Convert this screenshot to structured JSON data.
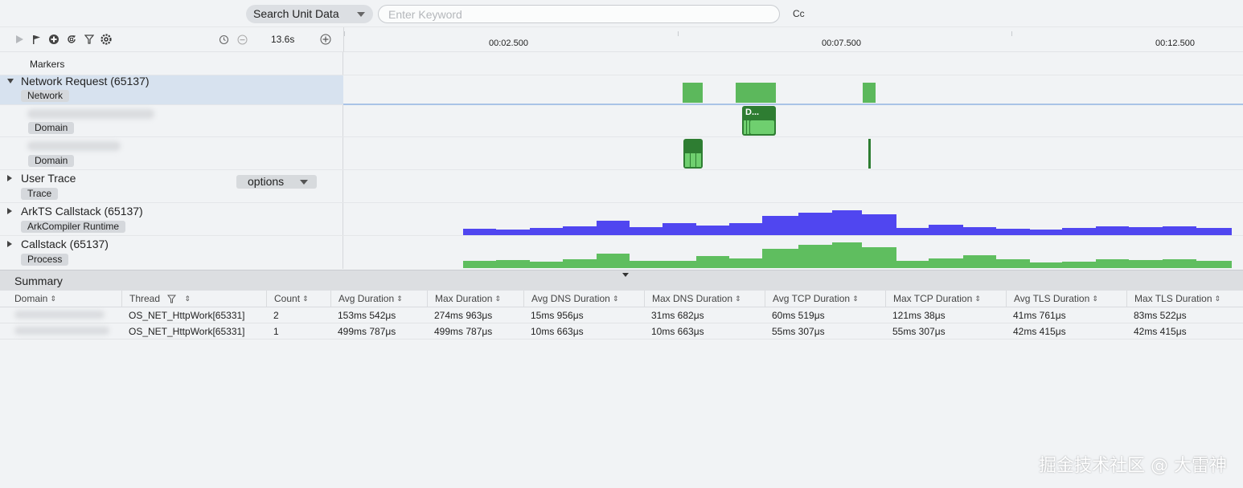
{
  "search": {
    "scope_label": "Search Unit Data",
    "placeholder": "Enter Keyword",
    "case_toggle": "Cc"
  },
  "toolbar": {
    "zoom_label": "13.6s",
    "icons": [
      "play-icon",
      "flag-icon",
      "add-circle-icon",
      "refresh-icon",
      "filter-icon",
      "settings-icon",
      "history-icon",
      "zoom-out-icon",
      "zoom-in-icon"
    ]
  },
  "ruler": {
    "labels": [
      "00:02.500",
      "00:07.500",
      "00:12.500"
    ]
  },
  "tracks": {
    "markers_label": "Markers",
    "network": {
      "title": "Network Request (65137)",
      "tag": "Network"
    },
    "domain1": {
      "tag": "Domain",
      "block_label": "D..."
    },
    "domain2": {
      "tag": "Domain"
    },
    "user_trace": {
      "title": "User Trace",
      "tag": "Trace",
      "options": "options"
    },
    "arkts": {
      "title": "ArkTS Callstack (65137)",
      "tag": "ArkCompiler Runtime"
    },
    "callstack": {
      "title": "Callstack (65137)",
      "tag": "Process"
    }
  },
  "summary": {
    "title": "Summary",
    "columns": [
      "Domain",
      "Thread",
      "Count",
      "Avg Duration",
      "Max Duration",
      "Avg DNS Duration",
      "Max DNS Duration",
      "Avg TCP Duration",
      "Max TCP Duration",
      "Avg TLS Duration",
      "Max TLS Duration"
    ],
    "rows": [
      {
        "thread": "OS_NET_HttpWork[65331]",
        "count": "2",
        "avg_duration": "153ms 542μs",
        "max_duration": "274ms 963μs",
        "avg_dns": "15ms 956μs",
        "max_dns": "31ms 682μs",
        "avg_tcp": "60ms 519μs",
        "max_tcp": "121ms 38μs",
        "avg_tls": "41ms 761μs",
        "max_tls": "83ms 522μs"
      },
      {
        "thread": "OS_NET_HttpWork[65331]",
        "count": "1",
        "avg_duration": "499ms 787μs",
        "max_duration": "499ms 787μs",
        "avg_dns": "10ms 663μs",
        "max_dns": "10ms 663μs",
        "avg_tcp": "55ms 307μs",
        "max_tcp": "55ms 307μs",
        "avg_tls": "42ms 415μs",
        "max_tls": "42ms 415μs"
      }
    ]
  },
  "watermark": "掘金技术社区 @ 大雷神",
  "colors": {
    "network_green": "#5cb85c",
    "domain_dark_green": "#2e7d32",
    "arkts_blue": "#5046f0",
    "callstack_green": "#5fbe5f",
    "selected_row": "#d7e2ef"
  }
}
